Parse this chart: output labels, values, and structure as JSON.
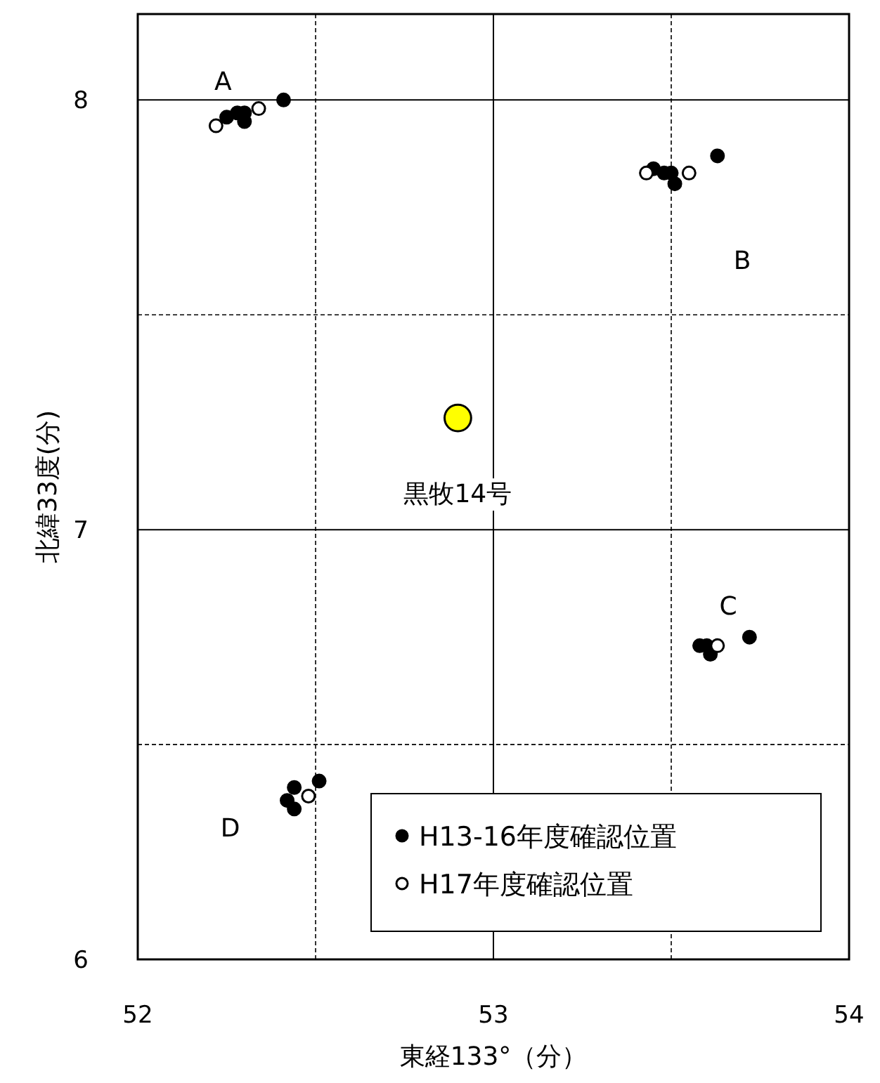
{
  "chart_data": {
    "type": "scatter",
    "xlabel": "東経133°（分）",
    "ylabel": "北緯33度(分)",
    "xlim": [
      52,
      54
    ],
    "ylim": [
      6,
      8.2
    ],
    "xticks": [
      52,
      {
        "value": 52.5,
        "label": null
      },
      53,
      {
        "value": 53.5,
        "label": null
      },
      54
    ],
    "yticks": [
      6,
      {
        "value": 6.5,
        "label": null
      },
      7,
      {
        "value": 7.5,
        "label": null
      },
      8
    ],
    "grid": true,
    "legend": "bottom right",
    "marker": "circle",
    "series": [
      {
        "name": "H13-16年度確認位置",
        "color": "#000000",
        "x": [
          52.41,
          52.25,
          52.28,
          52.3,
          52.3,
          53.63,
          53.45,
          53.48,
          53.5,
          53.51,
          53.72,
          53.58,
          53.6,
          53.61,
          52.51,
          52.44,
          52.42,
          52.44
        ],
        "values": [
          8.0,
          7.96,
          7.97,
          7.97,
          7.95,
          7.87,
          7.84,
          7.83,
          7.83,
          7.805,
          6.75,
          6.73,
          6.73,
          6.71,
          6.415,
          6.4,
          6.37,
          6.35
        ]
      },
      {
        "name": "H17年度確認位置",
        "color": "#ffffff",
        "x": [
          52.22,
          52.34,
          53.43,
          53.55,
          53.63,
          52.48
        ],
        "values": [
          7.94,
          7.98,
          7.83,
          7.83,
          6.73,
          6.38
        ]
      },
      {
        "color": "#ffff00",
        "x": [
          52.9
        ],
        "values": [
          7.26
        ]
      }
    ],
    "annotations": [
      "A",
      "B",
      "C",
      "D",
      {
        "text": "黒牧14号",
        "x": 52.9,
        "y": 7.26
      }
    ]
  }
}
